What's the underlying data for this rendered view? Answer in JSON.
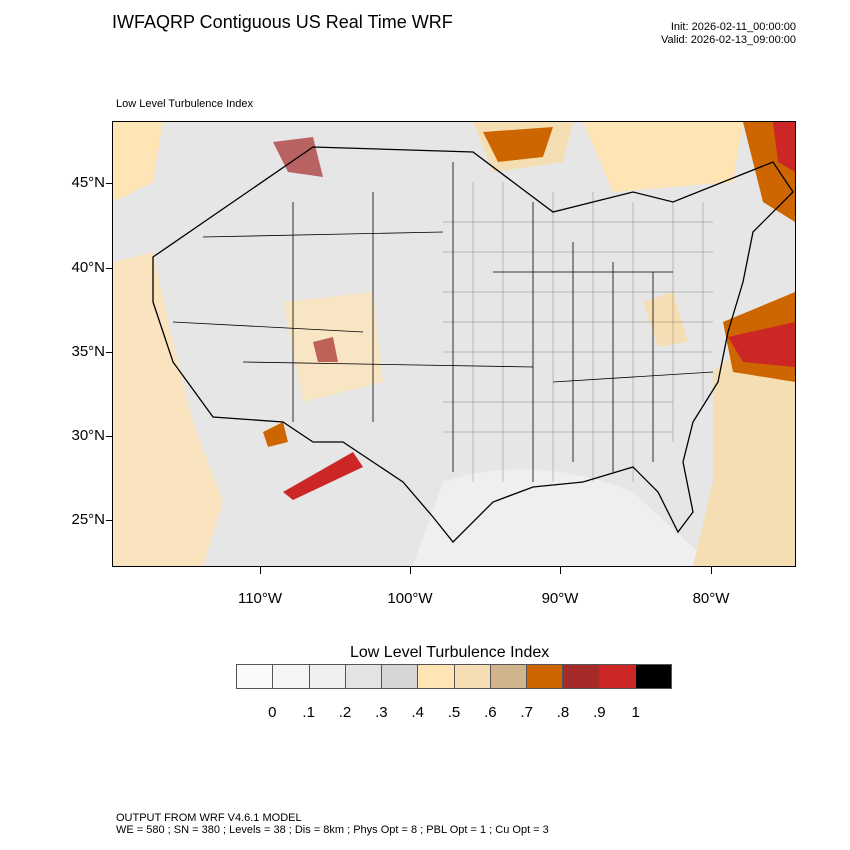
{
  "header": {
    "title": "IWFAQRP Contiguous US Real Time WRF",
    "init": "Init: 2026-02-11_00:00:00",
    "valid": "Valid: 2026-02-13_09:00:00"
  },
  "map": {
    "subtitle": "Low Level Turbulence Index",
    "lat_labels": [
      "45°N",
      "40°N",
      "35°N",
      "30°N",
      "25°N"
    ],
    "lon_labels": [
      "110°W",
      "100°W",
      "90°W",
      "80°W"
    ]
  },
  "colorbar": {
    "title": "Low Level Turbulence Index",
    "colors": [
      "#fafafa",
      "#f5f5f5",
      "#efefef",
      "#e3e3e3",
      "#d6d6d6",
      "#ffe4b5",
      "#f5deb3",
      "#d2b48c",
      "#cd6600",
      "#a52a2a",
      "#cd2626",
      "#000000"
    ],
    "labels": [
      "0",
      ".1",
      ".2",
      ".3",
      ".4",
      ".5",
      ".6",
      ".7",
      ".8",
      ".9",
      "1"
    ]
  },
  "footer": {
    "line1": "OUTPUT FROM WRF V4.6.1 MODEL",
    "line2": "WE = 580 ; SN = 380 ; Levels = 38 ; Dis = 8km ; Phys Opt = 8 ; PBL Opt = 1 ; Cu Opt = 3"
  }
}
